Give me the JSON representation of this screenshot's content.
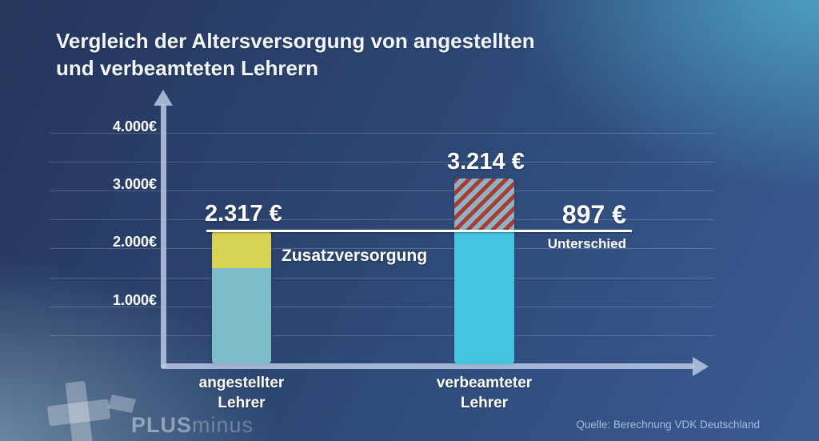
{
  "title": {
    "line1": "Vergleich der Altersversorgung von angestellten",
    "line2": "und verbeamteten Lehrern"
  },
  "source": "Quelle: Berechnung VDK Deutschland",
  "logo": {
    "plus_text": "PLUS",
    "minus_text": "minus"
  },
  "colors": {
    "background_top_left": "#25355c",
    "background_center": "#2e4a78",
    "background_bottom_right": "#3a5b94",
    "background_top_right_glow": "rgba(79,167,200,0.95)",
    "background_bottom_left_glow": "rgba(126,156,178,0.85)",
    "axis": "#b9c8e4",
    "gridline": "rgba(255,255,255,0.18)",
    "bar_teal": "#7fbcc9",
    "bar_yellow": "#d8d355",
    "bar_cyan": "#45c4e2",
    "hatch_red": "#a83c34",
    "hatch_blue": "#8fb3c4",
    "reference_line": "#ffffff"
  },
  "chart_data": {
    "type": "bar",
    "title": "Vergleich der Altersversorgung von angestellten und verbeamteten Lehrern",
    "categories": [
      "angestellter Lehrer",
      "verbeamteter Lehrer"
    ],
    "bars": [
      {
        "category_label_lines": [
          "angestellter",
          "Lehrer"
        ],
        "total": 2317,
        "total_label": "2.317 €",
        "segments": [
          {
            "label": "",
            "value": 1660,
            "color_key": "bar_teal",
            "estimated": true
          },
          {
            "label": "Zusatzversorgung",
            "value": 657,
            "color_key": "bar_yellow",
            "estimated": true
          }
        ]
      },
      {
        "category_label_lines": [
          "verbeamteter",
          "Lehrer"
        ],
        "total": 3214,
        "total_label": "3.214 €",
        "segments": [
          {
            "label": "",
            "value": 2317,
            "color_key": "bar_cyan"
          },
          {
            "label": "Unterschied",
            "value": 897,
            "color_key": "hatch"
          }
        ]
      }
    ],
    "difference": {
      "value": 897,
      "value_label": "897 €",
      "caption": "Unterschied"
    },
    "segment_annotation": "Zusatzversorgung",
    "reference_line_value": 2317,
    "y_axis": {
      "ticks": [
        {
          "value": 4000,
          "label": "4.000€"
        },
        {
          "value": 3000,
          "label": "3.000€"
        },
        {
          "value": 2000,
          "label": "2.000€"
        },
        {
          "value": 1000,
          "label": "1.000€"
        }
      ],
      "gridline_step": 500,
      "gridline_max": 4000,
      "ylim": [
        0,
        4400
      ],
      "grid": true
    },
    "legend": "none"
  }
}
